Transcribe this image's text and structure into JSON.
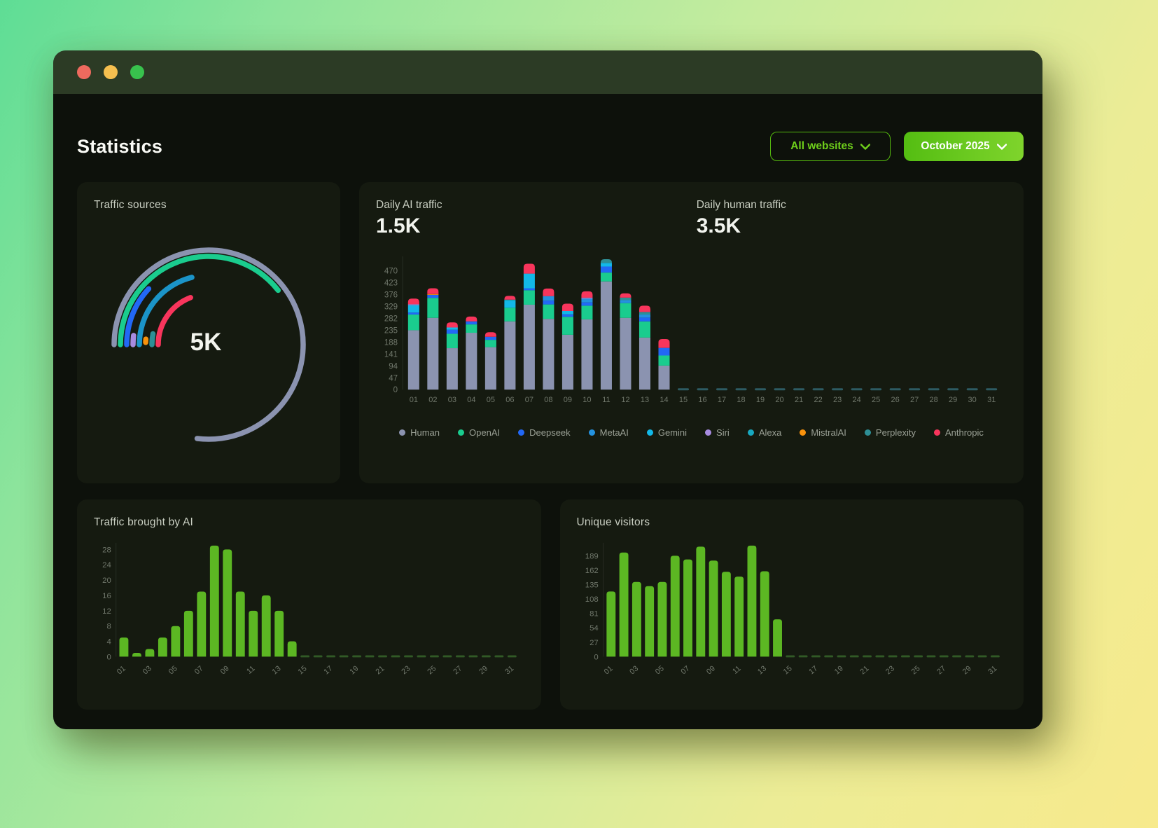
{
  "header": {
    "title": "Statistics",
    "website_filter_label": "All websites",
    "month_filter_label": "October 2025"
  },
  "cards": {
    "traffic_sources": {
      "title": "Traffic sources",
      "center_label": "5K"
    },
    "daily_traffic": {
      "ai_label": "Daily AI traffic",
      "ai_value": "1.5K",
      "human_label": "Daily human traffic",
      "human_value": "3.5K"
    },
    "ai_traffic": {
      "title": "Traffic brought by AI"
    },
    "unique_visitors": {
      "title": "Unique visitors"
    }
  },
  "colors": {
    "accent_green": "#55b90f",
    "traffic_light_close": "#ee6a5e",
    "traffic_light_minimize": "#f5bf4f",
    "traffic_light_zoom": "#38c24d"
  },
  "chart_data": [
    {
      "id": "gauge",
      "type": "radial_gauge",
      "title": "Traffic sources",
      "center_label": "5K",
      "arcs": [
        {
          "name": "Human",
          "color": "#8b93b0",
          "radius": 135,
          "sweep_deg": 277
        },
        {
          "name": "OpenAI",
          "color": "#1acc8e",
          "radius": 126,
          "sweep_deg": 142
        },
        {
          "name": "Deepseek",
          "color": "#2268f5",
          "radius": 117,
          "sweep_deg": 43
        },
        {
          "name": "Siri",
          "color": "#a78be0",
          "radius": 108,
          "sweep_deg": 7
        },
        {
          "name": "Gemini",
          "color": "#1b94c8",
          "radius": 99,
          "sweep_deg": 76
        },
        {
          "name": "MistralAI",
          "color": "#f8920c",
          "radius": 90,
          "sweep_deg": 3,
          "start_deg": 182
        },
        {
          "name": "Perplexity",
          "color": "#2e8f96",
          "radius": 81,
          "sweep_deg": 11
        },
        {
          "name": "Anthropic",
          "color": "#f8355c",
          "radius": 72,
          "sweep_deg": 69
        }
      ]
    },
    {
      "id": "stacked-chart",
      "type": "stacked_bar",
      "categories": [
        "01",
        "02",
        "03",
        "04",
        "05",
        "06",
        "07",
        "08",
        "09",
        "10",
        "11",
        "12",
        "13",
        "14",
        "15",
        "16",
        "17",
        "18",
        "19",
        "20",
        "21",
        "22",
        "23",
        "24",
        "25",
        "26",
        "27",
        "28",
        "29",
        "30",
        "31"
      ],
      "y_ticks": [
        0,
        47,
        94,
        141,
        188,
        235,
        282,
        329,
        376,
        423,
        470
      ],
      "empty_dash_color": "#2d5b63",
      "legend_position": "bottom",
      "series": [
        {
          "name": "Human",
          "color": "#8b93b0",
          "values": [
            235,
            284,
            164,
            225,
            168,
            270,
            336,
            280,
            217,
            278,
            428,
            284,
            206,
            95,
            null,
            null,
            null,
            null,
            null,
            null,
            null,
            null,
            null,
            null,
            null,
            null,
            null,
            null,
            null,
            null,
            null
          ]
        },
        {
          "name": "OpenAI",
          "color": "#1acc8e",
          "values": [
            62,
            79,
            57,
            33,
            29,
            54,
            57,
            57,
            71,
            54,
            35,
            58,
            64,
            40,
            null,
            null,
            null,
            null,
            null,
            null,
            null,
            null,
            null,
            null,
            null,
            null,
            null,
            null,
            null,
            null,
            null
          ]
        },
        {
          "name": "Deepseek",
          "color": "#2268f5",
          "values": [
            8,
            12,
            16,
            12,
            12,
            0,
            8,
            15,
            10,
            13,
            24,
            0,
            15,
            30,
            null,
            null,
            null,
            null,
            null,
            null,
            null,
            null,
            null,
            null,
            null,
            null,
            null,
            null,
            null,
            null,
            null
          ]
        },
        {
          "name": "MetaAI",
          "color": "#2492e0",
          "values": [
            0,
            0,
            0,
            0,
            0,
            0,
            0,
            18,
            0,
            15,
            0,
            12,
            12,
            0,
            null,
            null,
            null,
            null,
            null,
            null,
            null,
            null,
            null,
            null,
            null,
            null,
            null,
            null,
            null,
            null,
            null
          ]
        },
        {
          "name": "Gemini",
          "color": "#12b8e8",
          "values": [
            29,
            0,
            9,
            0,
            0,
            27,
            58,
            0,
            13,
            0,
            14,
            0,
            0,
            0,
            null,
            null,
            null,
            null,
            null,
            null,
            null,
            null,
            null,
            null,
            null,
            null,
            null,
            null,
            null,
            null,
            null
          ]
        },
        {
          "name": "Siri",
          "color": "#a78be0",
          "values": [
            4,
            0,
            0,
            0,
            0,
            0,
            0,
            0,
            0,
            4,
            0,
            0,
            0,
            0,
            null,
            null,
            null,
            null,
            null,
            null,
            null,
            null,
            null,
            null,
            null,
            null,
            null,
            null,
            null,
            null,
            null
          ]
        },
        {
          "name": "Alexa",
          "color": "#18a8c0",
          "values": [
            0,
            0,
            0,
            0,
            0,
            5,
            0,
            0,
            0,
            0,
            0,
            0,
            0,
            0,
            null,
            null,
            null,
            null,
            null,
            null,
            null,
            null,
            null,
            null,
            null,
            null,
            null,
            null,
            null,
            null,
            null
          ]
        },
        {
          "name": "MistralAI",
          "color": "#f8920c",
          "values": [
            0,
            3,
            0,
            0,
            0,
            0,
            0,
            0,
            0,
            0,
            0,
            0,
            0,
            0,
            null,
            null,
            null,
            null,
            null,
            null,
            null,
            null,
            null,
            null,
            null,
            null,
            null,
            null,
            null,
            null,
            null
          ]
        },
        {
          "name": "Perplexity",
          "color": "#2e8f96",
          "values": [
            0,
            0,
            0,
            0,
            0,
            0,
            0,
            0,
            0,
            0,
            15,
            10,
            10,
            0,
            null,
            null,
            null,
            null,
            null,
            null,
            null,
            null,
            null,
            null,
            null,
            null,
            null,
            null,
            null,
            null,
            null
          ]
        },
        {
          "name": "Anthropic",
          "color": "#f8355c",
          "values": [
            22,
            23,
            20,
            19,
            18,
            15,
            39,
            30,
            29,
            25,
            0,
            17,
            25,
            35,
            null,
            null,
            null,
            null,
            null,
            null,
            null,
            null,
            null,
            null,
            null,
            null,
            null,
            null,
            null,
            null,
            null
          ]
        }
      ]
    },
    {
      "id": "ai-chart",
      "type": "bar",
      "title": "Traffic brought by AI",
      "categories": [
        "01",
        "02",
        "03",
        "04",
        "05",
        "06",
        "07",
        "08",
        "09",
        "10",
        "11",
        "12",
        "13",
        "14",
        "15",
        "16",
        "17",
        "18",
        "19",
        "20",
        "21",
        "22",
        "23",
        "24",
        "25",
        "26",
        "27",
        "28",
        "29",
        "30",
        "31"
      ],
      "y_ticks": [
        0,
        4,
        8,
        12,
        16,
        20,
        24,
        28
      ],
      "values": [
        5,
        1,
        2,
        5,
        8,
        12,
        17,
        29,
        28,
        17,
        12,
        16,
        12,
        4,
        null,
        null,
        null,
        null,
        null,
        null,
        null,
        null,
        null,
        null,
        null,
        null,
        null,
        null,
        null,
        null,
        null
      ],
      "bar_color": "#5cb723",
      "empty_dash_color": "#315a26",
      "label_every": 2
    },
    {
      "id": "visitors-chart",
      "type": "bar",
      "title": "Unique visitors",
      "categories": [
        "01",
        "02",
        "03",
        "04",
        "05",
        "06",
        "07",
        "08",
        "09",
        "10",
        "11",
        "12",
        "13",
        "14",
        "15",
        "16",
        "17",
        "18",
        "19",
        "20",
        "21",
        "22",
        "23",
        "24",
        "25",
        "26",
        "27",
        "28",
        "29",
        "30",
        "31"
      ],
      "y_ticks": [
        0,
        27,
        54,
        81,
        108,
        135,
        162,
        189
      ],
      "values": [
        122,
        195,
        140,
        132,
        140,
        189,
        182,
        206,
        180,
        159,
        150,
        208,
        160,
        70,
        null,
        null,
        null,
        null,
        null,
        null,
        null,
        null,
        null,
        null,
        null,
        null,
        null,
        null,
        null,
        null,
        null
      ],
      "bar_color": "#5cb723",
      "empty_dash_color": "#315a26",
      "label_every": 2
    }
  ]
}
